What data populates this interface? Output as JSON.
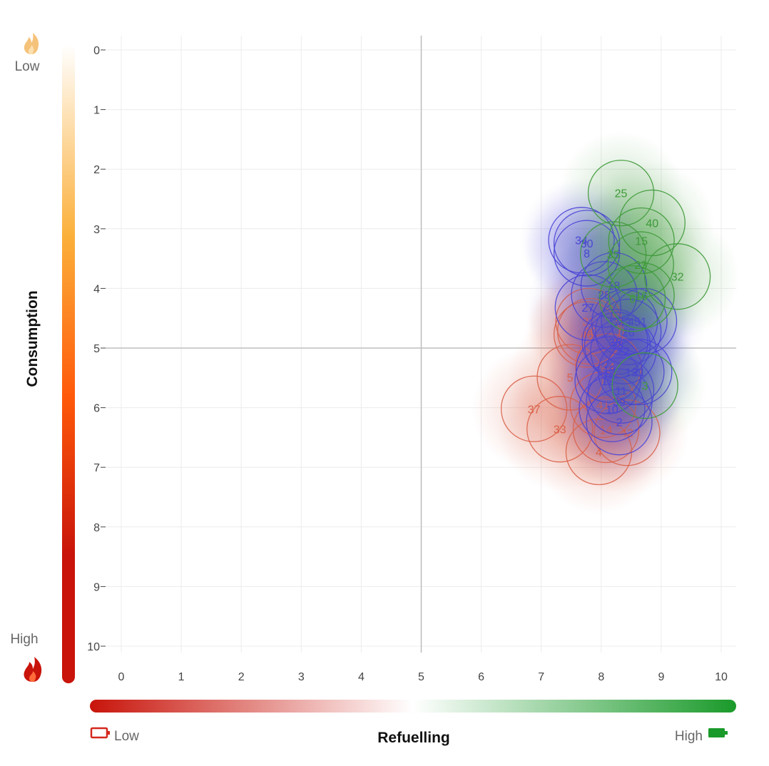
{
  "colors": {
    "red": "#d9624a",
    "blue": "#4b45d6",
    "green": "#3f9a3a",
    "refuel_low": "#c8140a",
    "refuel_high": "#1a9a2a",
    "cons_low": "#fff5e6",
    "cons_mid": "#fbb03b",
    "cons_orange": "#ff5a0a",
    "cons_high": "#c8140a"
  },
  "legend": {
    "consumption_low": "Low",
    "consumption_high": "High",
    "refuelling_low": "Low",
    "refuelling_high": "High",
    "flame_icon": "flame-icon",
    "battery_empty_icon": "battery-empty-icon",
    "battery_full_icon": "battery-full-icon"
  },
  "chart_data": {
    "type": "scatter",
    "xlabel": "Refuelling",
    "ylabel": "Consumption",
    "xlim": [
      0,
      10
    ],
    "ylim": [
      0,
      10
    ],
    "y_reversed": true,
    "x_ticks": [
      "0",
      "1",
      "2",
      "3",
      "4",
      "5",
      "6",
      "7",
      "8",
      "9",
      "10"
    ],
    "y_ticks": [
      "0",
      "1",
      "2",
      "3",
      "4",
      "5",
      "6",
      "7",
      "8",
      "9",
      "10"
    ],
    "grid": true,
    "crosshair": [
      5,
      5
    ],
    "series": [
      {
        "color": "red",
        "points": [
          {
            "label": "37",
            "x": 6.88,
            "y": 6.02
          },
          {
            "label": "33",
            "x": 7.31,
            "y": 6.36
          },
          {
            "label": "5",
            "x": 7.48,
            "y": 5.49
          },
          {
            "label": "4",
            "x": 7.96,
            "y": 6.74
          },
          {
            "label": "14",
            "x": 8.08,
            "y": 6.37
          },
          {
            "label": "42",
            "x": 8.43,
            "y": 6.42
          },
          {
            "label": "41",
            "x": 8.03,
            "y": 5.95
          },
          {
            "label": "44",
            "x": 8.12,
            "y": 5.31
          },
          {
            "label": "46",
            "x": 7.76,
            "y": 4.77
          },
          {
            "label": "20",
            "x": 7.82,
            "y": 4.72
          },
          {
            "label": "31",
            "x": 7.79,
            "y": 4.55
          }
        ]
      },
      {
        "color": "blue",
        "points": [
          {
            "label": "34",
            "x": 7.67,
            "y": 3.19
          },
          {
            "label": "30",
            "x": 7.76,
            "y": 3.24
          },
          {
            "label": "8",
            "x": 7.76,
            "y": 3.41
          },
          {
            "label": "18",
            "x": 8.21,
            "y": 3.95
          },
          {
            "label": "28",
            "x": 8.05,
            "y": 4.1
          },
          {
            "label": "27",
            "x": 7.78,
            "y": 4.32
          },
          {
            "label": "43",
            "x": 8.39,
            "y": 4.57
          },
          {
            "label": "45",
            "x": 8.55,
            "y": 4.55
          },
          {
            "label": "1",
            "x": 8.71,
            "y": 4.55
          },
          {
            "label": "26",
            "x": 8.45,
            "y": 4.73
          },
          {
            "label": "36",
            "x": 8.23,
            "y": 4.9
          },
          {
            "label": "38",
            "x": 8.27,
            "y": 4.95
          },
          {
            "label": "22",
            "x": 8.37,
            "y": 5.05
          },
          {
            "label": "19",
            "x": 8.13,
            "y": 5.36
          },
          {
            "label": "13",
            "x": 8.5,
            "y": 5.4
          },
          {
            "label": "21",
            "x": 8.63,
            "y": 5.4
          },
          {
            "label": "12",
            "x": 8.11,
            "y": 5.55
          },
          {
            "label": "11",
            "x": 8.33,
            "y": 5.71
          },
          {
            "label": "39",
            "x": 8.3,
            "y": 5.9
          },
          {
            "label": "10",
            "x": 8.18,
            "y": 6.02
          },
          {
            "label": "2",
            "x": 8.3,
            "y": 6.24
          }
        ]
      },
      {
        "color": "green",
        "points": [
          {
            "label": "25",
            "x": 8.33,
            "y": 2.4
          },
          {
            "label": "40",
            "x": 8.85,
            "y": 2.9
          },
          {
            "label": "15",
            "x": 8.67,
            "y": 3.2
          },
          {
            "label": "35",
            "x": 8.2,
            "y": 3.43
          },
          {
            "label": "23",
            "x": 8.66,
            "y": 3.6
          },
          {
            "label": "32",
            "x": 9.27,
            "y": 3.8
          },
          {
            "label": "16",
            "x": 8.67,
            "y": 4.12
          },
          {
            "label": "6",
            "x": 8.52,
            "y": 4.17
          },
          {
            "label": "3",
            "x": 8.73,
            "y": 5.63
          }
        ]
      }
    ]
  }
}
